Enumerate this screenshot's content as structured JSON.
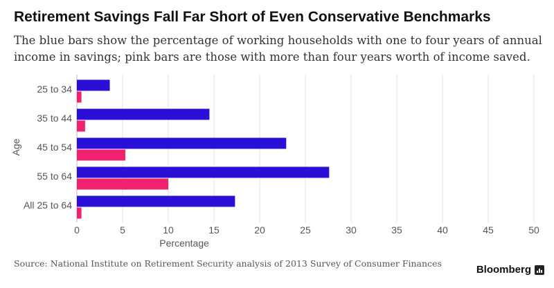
{
  "chart_data": {
    "type": "bar",
    "orientation": "horizontal",
    "title": "Retirement Savings Fall Far Short of Even Conservative Benchmarks",
    "subtitle": "The blue bars show the percentage of working households with one to four years of annual income in savings; pink bars are those with more than four years worth of income saved.",
    "categories": [
      "25 to 34",
      "35 to 44",
      "45 to 54",
      "55 to 64",
      "All 25 to 64"
    ],
    "series": [
      {
        "values": [
          3.6,
          14.5,
          22.9,
          27.6,
          17.3
        ],
        "color": "#2a0fd6"
      },
      {
        "values": [
          0.5,
          0.9,
          5.3,
          10.0,
          0.5
        ],
        "color": "#f0216e"
      }
    ],
    "xlabel": "Percentage",
    "ylabel": "Age",
    "xlim": [
      0,
      50
    ],
    "xticks": [
      0,
      5,
      10,
      15,
      20,
      25,
      30,
      35,
      40,
      45,
      50
    ],
    "grid": true
  },
  "source": "Source: National Institute on Retirement Security analysis of 2013 Survey of Consumer Finances",
  "brand": "Bloomberg",
  "brand_icon": "bar-chart-icon",
  "gridline_color": "#e3e3e3"
}
